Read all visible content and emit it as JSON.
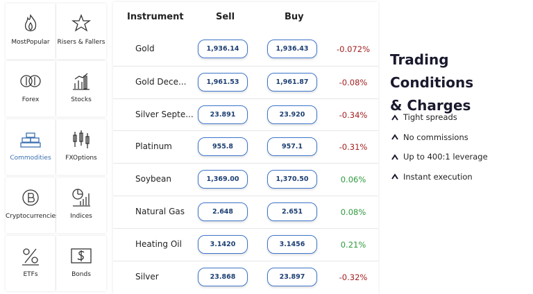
{
  "categories": [
    "MostPopular",
    "Risers & Fallers",
    "Forex",
    "Stocks",
    "Commodities",
    "FXOptions",
    "Cryptocurrencies",
    "Indices",
    "ETFs",
    "Bonds"
  ],
  "selected_category": 4,
  "table": {
    "headers": [
      "Instrument",
      "Sell",
      "Buy"
    ],
    "rows": [
      [
        "Gold",
        "1,936.14",
        "1,936.43",
        "-0.072%"
      ],
      [
        "Gold Dece...",
        "1,961.53",
        "1,961.87",
        "-0.08%"
      ],
      [
        "Silver Septe...",
        "23.891",
        "23.920",
        "-0.34%"
      ],
      [
        "Platinum",
        "955.8",
        "957.1",
        "-0.31%"
      ],
      [
        "Soybean",
        "1,369.00",
        "1,370.50",
        "0.06%"
      ],
      [
        "Natural Gas",
        "2.648",
        "2.651",
        "0.08%"
      ],
      [
        "Heating Oil",
        "3.1420",
        "3.1456",
        "0.21%"
      ],
      [
        "Silver",
        "23.868",
        "23.897",
        "-0.32%"
      ]
    ]
  },
  "panel": {
    "title_lines": [
      "Trading Conditions",
      "& Charges"
    ],
    "features": [
      "Tight spreads",
      "No commissions",
      "Up to 400:1 leverage",
      "Instant execution"
    ]
  }
}
